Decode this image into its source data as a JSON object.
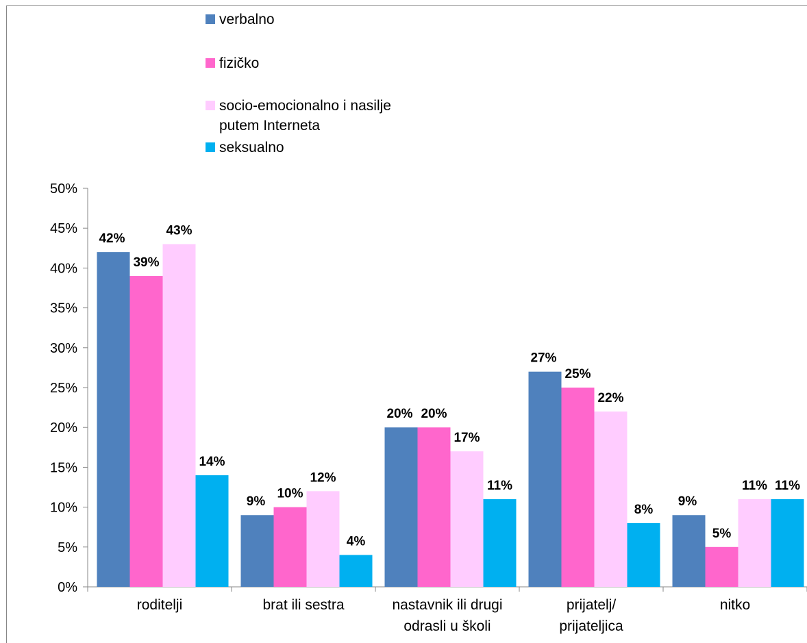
{
  "legend": {
    "items": [
      {
        "label": "verbalno",
        "color": "#4f81bd"
      },
      {
        "label": "fizičko",
        "color": "#ff66cc"
      },
      {
        "label_line1": "socio-emocionalno i nasilje",
        "label_line2": "putem Interneta",
        "color": "#ffccff"
      },
      {
        "label": "seksualno",
        "color": "#00b0f0"
      }
    ]
  },
  "chart_data": {
    "type": "bar",
    "categories": [
      [
        "roditelji"
      ],
      [
        "brat ili sestra"
      ],
      [
        "nastavnik ili drugi",
        "odrasli u školi"
      ],
      [
        "prijatelj/",
        "prijateljica"
      ],
      [
        "nitko"
      ]
    ],
    "series": [
      {
        "name": "verbalno",
        "color": "#4f81bd",
        "values": [
          42,
          9,
          20,
          27,
          9
        ]
      },
      {
        "name": "fizičko",
        "color": "#ff66cc",
        "values": [
          39,
          10,
          20,
          25,
          5
        ]
      },
      {
        "name": "socio-emocionalno i nasilje putem Interneta",
        "color": "#ffccff",
        "values": [
          43,
          12,
          17,
          22,
          11
        ]
      },
      {
        "name": "seksualno",
        "color": "#00b0f0",
        "values": [
          14,
          4,
          11,
          8,
          11
        ]
      }
    ],
    "data_labels": [
      [
        "42%",
        "9%",
        "20%",
        "27%",
        "9%"
      ],
      [
        "39%",
        "10%",
        "20%",
        "25%",
        "5%"
      ],
      [
        "43%",
        "12%",
        "17%",
        "22%",
        "11%"
      ],
      [
        "14%",
        "4%",
        "11%",
        "8%",
        "11%"
      ]
    ],
    "y_ticks": [
      "0%",
      "5%",
      "10%",
      "15%",
      "20%",
      "25%",
      "30%",
      "35%",
      "40%",
      "45%",
      "50%"
    ],
    "ylim": [
      0,
      50
    ],
    "grid": false,
    "legend_position": "top"
  }
}
